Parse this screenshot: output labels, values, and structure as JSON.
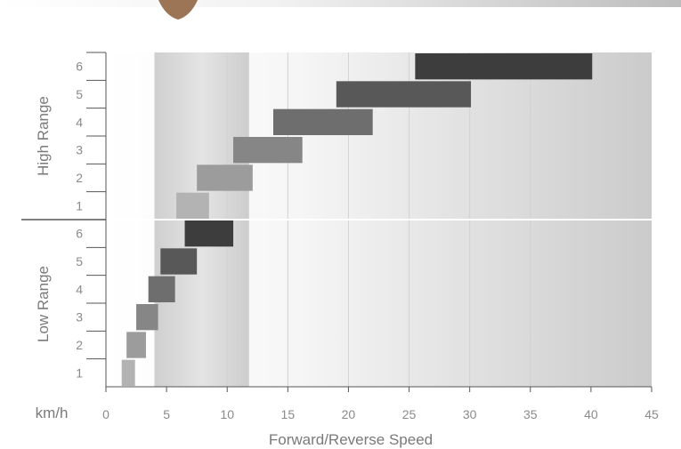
{
  "chart_data": {
    "type": "bar",
    "orientation": "horizontal-range",
    "xlabel": "Forward/Reverse Speed",
    "unit_label": "km/h",
    "xlim": [
      0,
      45
    ],
    "x_ticks": [
      "0",
      "5",
      "10",
      "15",
      "20",
      "25",
      "30",
      "35",
      "40",
      "45"
    ],
    "grid": "vertical",
    "highlight_band": [
      4,
      11.8
    ],
    "groups": [
      {
        "name": "High Range",
        "gears": [
          "1",
          "2",
          "3",
          "4",
          "5",
          "6"
        ],
        "ranges": [
          [
            5.8,
            8.5
          ],
          [
            7.5,
            12.1
          ],
          [
            10.5,
            16.2
          ],
          [
            13.8,
            22
          ],
          [
            19,
            30.1
          ],
          [
            25.5,
            40.1
          ]
        ],
        "colors": [
          "#b3b3b3",
          "#9c9c9c",
          "#868686",
          "#6e6e6e",
          "#585858",
          "#3d3d3d"
        ]
      },
      {
        "name": "Low Range",
        "gears": [
          "1",
          "2",
          "3",
          "4",
          "5",
          "6"
        ],
        "ranges": [
          [
            1.3,
            2.4
          ],
          [
            1.7,
            3.3
          ],
          [
            2.5,
            4.3
          ],
          [
            3.5,
            5.7
          ],
          [
            4.5,
            7.5
          ],
          [
            6.5,
            10.5
          ]
        ],
        "colors": [
          "#b3b3b3",
          "#9c9c9c",
          "#868686",
          "#6e6e6e",
          "#585858",
          "#3d3d3d"
        ]
      }
    ]
  }
}
